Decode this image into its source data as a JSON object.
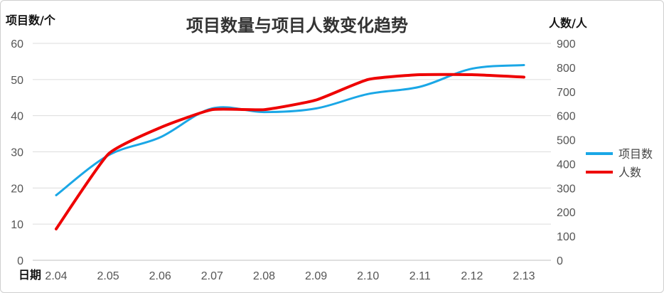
{
  "chart_data": {
    "type": "line",
    "title": "项目数量与项目人数变化趋势",
    "xlabel": "日期",
    "ylabel": "项目数/个",
    "y2label": "人数/人",
    "categories": [
      "2.04",
      "2.05",
      "2.06",
      "2.07",
      "2.08",
      "2.09",
      "2.10",
      "2.11",
      "2.12",
      "2.13"
    ],
    "ylim": [
      0,
      60
    ],
    "yticks": [
      "0",
      "10",
      "20",
      "30",
      "40",
      "50",
      "60"
    ],
    "y2lim": [
      0,
      900
    ],
    "y2ticks": [
      "0",
      "100",
      "200",
      "300",
      "400",
      "500",
      "600",
      "700",
      "800",
      "900"
    ],
    "grid": true,
    "legend": "right",
    "series": [
      {
        "name": "项目数",
        "axis": "left",
        "color": "#1aa7e6",
        "values": [
          18,
          29,
          34,
          42,
          41,
          42,
          46,
          48,
          53,
          54
        ]
      },
      {
        "name": "人数",
        "axis": "right",
        "color": "#ee0000",
        "values": [
          130,
          440,
          550,
          625,
          625,
          665,
          750,
          770,
          770,
          760
        ]
      }
    ]
  }
}
